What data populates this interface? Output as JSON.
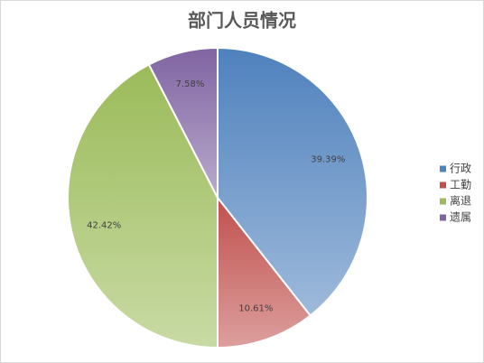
{
  "chart_data": {
    "type": "pie",
    "title": "部门人员情况",
    "categories": [
      "行政",
      "工勤",
      "离退",
      "遗属"
    ],
    "values": [
      39.39,
      10.61,
      42.42,
      7.58
    ],
    "value_labels": [
      "39.39%",
      "10.61%",
      "42.42%",
      "7.58%"
    ],
    "colors": [
      "#4f81bd",
      "#c0504d",
      "#9bbb59",
      "#8064a2"
    ],
    "legend": "right"
  }
}
